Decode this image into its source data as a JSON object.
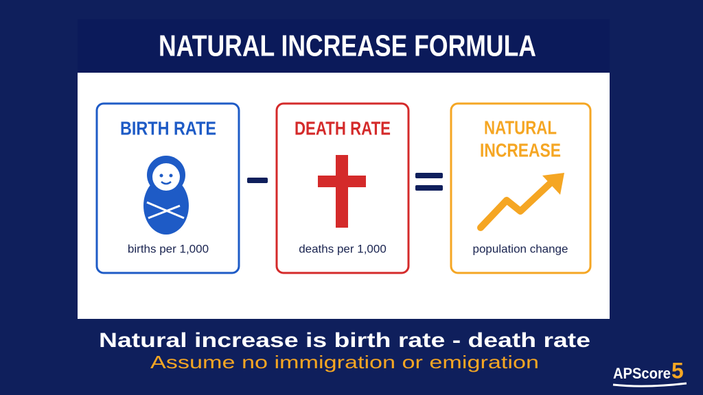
{
  "header": {
    "title": "NATURAL INCREASE FORMULA"
  },
  "cards": [
    {
      "title": [
        "BIRTH RATE"
      ],
      "caption": "births per 1,000"
    },
    {
      "title": [
        "DEATH RATE"
      ],
      "caption": "deaths per 1,000"
    },
    {
      "title": [
        "NATURAL",
        "INCREASE"
      ],
      "caption": "population change"
    }
  ],
  "footer": {
    "headline": "Natural increase is birth rate - death rate",
    "subline": "Assume no immigration or emigration"
  },
  "logo": {
    "text": "APScore",
    "number": "5"
  }
}
